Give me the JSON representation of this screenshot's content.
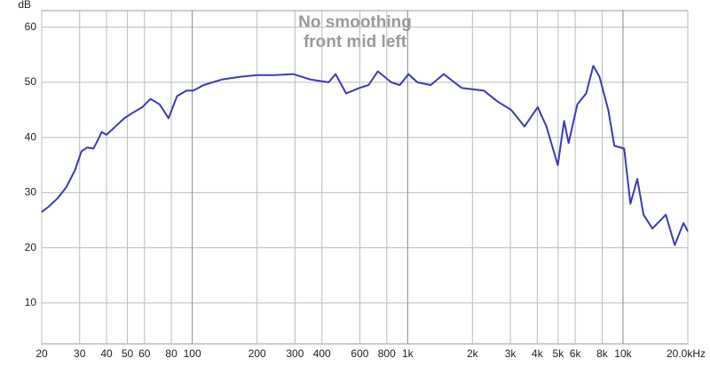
{
  "chart_data": {
    "type": "line",
    "title": "No smoothing",
    "subtitle": "front mid left",
    "y_label": "dB",
    "x_scale": "log",
    "grid": true,
    "xlim": [
      20,
      20000
    ],
    "ylim": [
      2.6,
      63
    ],
    "xticks": [
      20,
      30,
      40,
      50,
      60,
      80,
      100,
      200,
      300,
      400,
      600,
      800,
      {
        "value": 1000,
        "label": "1k"
      },
      {
        "value": 2000,
        "label": "2k"
      },
      {
        "value": 3000,
        "label": "3k"
      },
      {
        "value": 4000,
        "label": "4k"
      },
      {
        "value": 5000,
        "label": "5k"
      },
      {
        "value": 6000,
        "label": "6k"
      },
      {
        "value": 8000,
        "label": "8k"
      },
      {
        "value": 10000,
        "label": "10k"
      },
      {
        "value": 20000,
        "label": "20.0kHz"
      }
    ],
    "yticks": [
      10,
      20,
      30,
      40,
      50,
      60
    ],
    "x": [
      20,
      21.6,
      23.7,
      26,
      28.5,
      30.6,
      32.5,
      34.8,
      36.4,
      38,
      40,
      44,
      48.4,
      53,
      58.6,
      64,
      70.6,
      77.6,
      85,
      94,
      101,
      113,
      137,
      166,
      200,
      242,
      294,
      355,
      430,
      463,
      518,
      598,
      659,
      727,
      840,
      920,
      1009,
      1110,
      1280,
      1470,
      1780,
      2260,
      2620,
      3030,
      3490,
      4020,
      4410,
      4980,
      5330,
      5590,
      6140,
      6750,
      7280,
      7780,
      8550,
      9120,
      10130,
      10820,
      11660,
      12460,
      13700,
      15800,
      17400,
      19100,
      20000
    ],
    "series": [
      {
        "color": "#3b3bb5",
        "values": [
          26.5,
          27.5,
          29,
          31,
          34,
          37.5,
          38.2,
          38,
          39.5,
          41,
          40.5,
          42,
          43.5,
          44.5,
          45.5,
          47,
          46,
          43.5,
          47.5,
          48.5,
          48.5,
          49.5,
          50.5,
          51,
          51.3,
          51.3,
          51.5,
          50.5,
          50,
          51.5,
          48,
          49,
          49.5,
          52,
          50,
          49.5,
          51.5,
          50,
          49.5,
          51.5,
          49,
          48.5,
          46.5,
          45,
          42,
          45.5,
          42,
          35,
          43,
          39,
          46,
          48,
          53,
          51,
          45,
          38.5,
          38,
          28,
          32.5,
          26,
          23.5,
          26,
          20.5,
          24.5,
          23
        ]
      }
    ]
  }
}
